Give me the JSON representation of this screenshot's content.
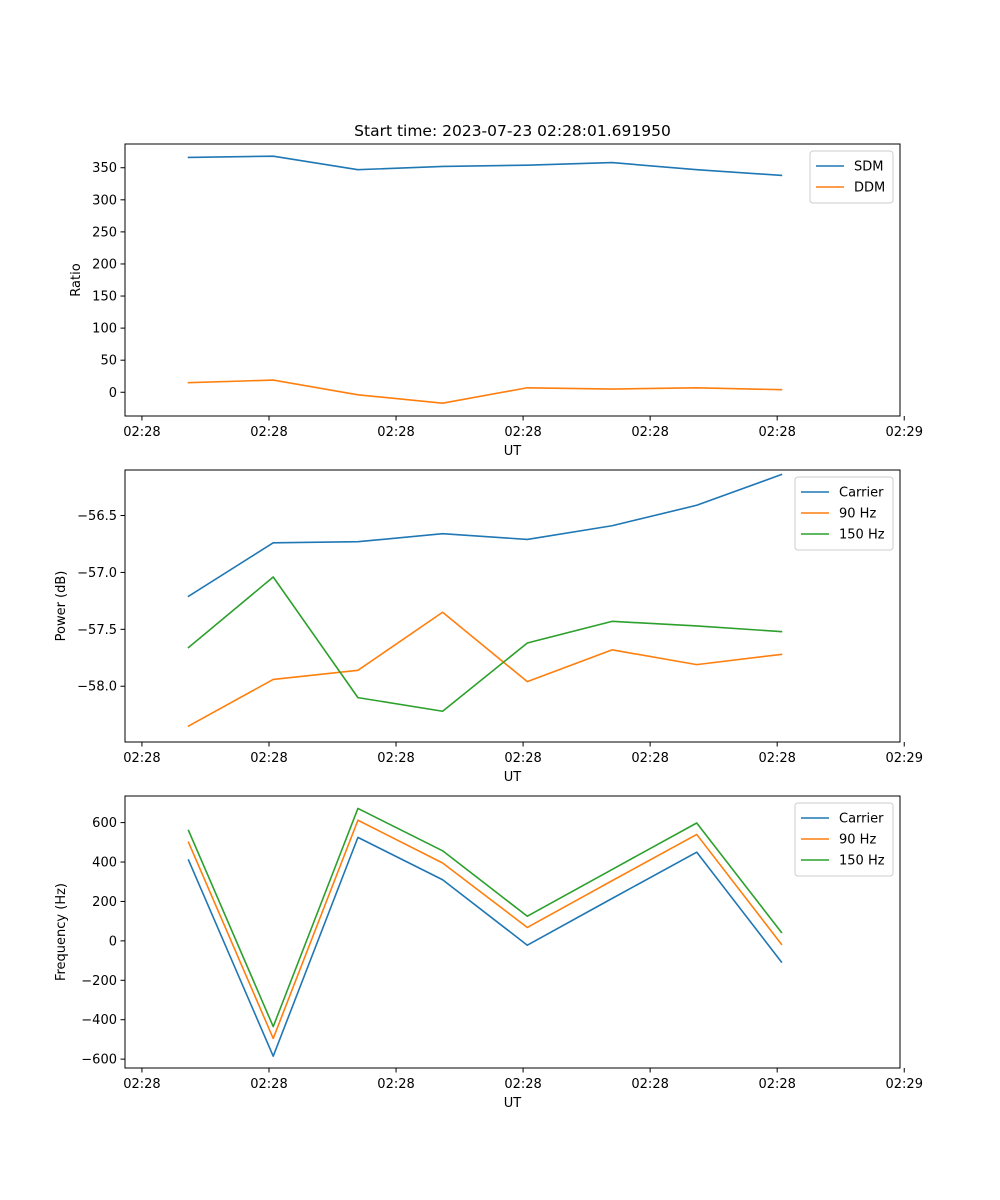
{
  "figure_title": "Start time: 2023-07-23 02:28:01.691950",
  "chart_data": [
    {
      "type": "line",
      "title": "Start time: 2023-07-23 02:28:01.691950",
      "xlabel": "UT",
      "ylabel": "Ratio",
      "x": [
        1,
        2,
        3,
        4,
        5,
        6,
        7,
        8
      ],
      "xlim": [
        0.25,
        9.4
      ],
      "xticks": [
        0.45,
        1.95,
        3.45,
        4.95,
        6.45,
        7.95,
        9.45
      ],
      "xtick_labels": [
        "02:28",
        "02:28",
        "02:28",
        "02:28",
        "02:28",
        "02:28",
        "02:29"
      ],
      "ylim": [
        -37,
        387
      ],
      "yticks": [
        0,
        50,
        100,
        150,
        200,
        250,
        300,
        350
      ],
      "ytick_labels": [
        "0",
        "50",
        "100",
        "150",
        "200",
        "250",
        "300",
        "350"
      ],
      "legend_position": "top-right",
      "series": [
        {
          "name": "SDM",
          "color": "#1f77b4",
          "values": [
            366,
            368,
            347,
            352,
            354,
            358,
            347,
            338
          ]
        },
        {
          "name": "DDM",
          "color": "#ff7f0e",
          "values": [
            15,
            19,
            -4,
            -17,
            7,
            5,
            7,
            4
          ]
        }
      ]
    },
    {
      "type": "line",
      "title": "",
      "xlabel": "UT",
      "ylabel": "Power (dB)",
      "x": [
        1,
        2,
        3,
        4,
        5,
        6,
        7,
        8
      ],
      "xlim": [
        0.25,
        9.4
      ],
      "xticks": [
        0.45,
        1.95,
        3.45,
        4.95,
        6.45,
        7.95,
        9.45
      ],
      "xtick_labels": [
        "02:28",
        "02:28",
        "02:28",
        "02:28",
        "02:28",
        "02:28",
        "02:29"
      ],
      "ylim": [
        -58.49,
        -56.1
      ],
      "yticks": [
        -58.0,
        -57.5,
        -57.0,
        -56.5
      ],
      "ytick_labels": [
        "−58.0",
        "−57.5",
        "−57.0",
        "−56.5"
      ],
      "legend_position": "top-right",
      "series": [
        {
          "name": "Carrier",
          "color": "#1f77b4",
          "values": [
            -57.21,
            -56.74,
            -56.73,
            -56.66,
            -56.71,
            -56.59,
            -56.41,
            -56.14
          ]
        },
        {
          "name": "90 Hz",
          "color": "#ff7f0e",
          "values": [
            -58.35,
            -57.94,
            -57.86,
            -57.35,
            -57.96,
            -57.68,
            -57.81,
            -57.72
          ]
        },
        {
          "name": "150 Hz",
          "color": "#2ca02c",
          "values": [
            -57.66,
            -57.04,
            -58.1,
            -58.22,
            -57.62,
            -57.43,
            -57.47,
            -57.52
          ]
        }
      ]
    },
    {
      "type": "line",
      "title": "",
      "xlabel": "UT",
      "ylabel": "Frequency (Hz)",
      "x": [
        1,
        2,
        3,
        4,
        5,
        6,
        7,
        8
      ],
      "xlim": [
        0.25,
        9.4
      ],
      "xticks": [
        0.45,
        1.95,
        3.45,
        4.95,
        6.45,
        7.95,
        9.45
      ],
      "xtick_labels": [
        "02:28",
        "02:28",
        "02:28",
        "02:28",
        "02:28",
        "02:28",
        "02:29"
      ],
      "ylim": [
        -645,
        735
      ],
      "yticks": [
        -600,
        -400,
        -200,
        0,
        200,
        400,
        600
      ],
      "ytick_labels": [
        "−600",
        "−400",
        "−200",
        "0",
        "200",
        "400",
        "600"
      ],
      "legend_position": "top-right",
      "series": [
        {
          "name": "Carrier",
          "color": "#1f77b4",
          "values": [
            410,
            -585,
            525,
            310,
            -22,
            215,
            450,
            -107
          ]
        },
        {
          "name": "90 Hz",
          "color": "#ff7f0e",
          "values": [
            500,
            -495,
            612,
            395,
            68,
            305,
            540,
            -17
          ]
        },
        {
          "name": "150 Hz",
          "color": "#2ca02c",
          "values": [
            560,
            -435,
            672,
            457,
            125,
            362,
            598,
            43
          ]
        }
      ]
    }
  ]
}
